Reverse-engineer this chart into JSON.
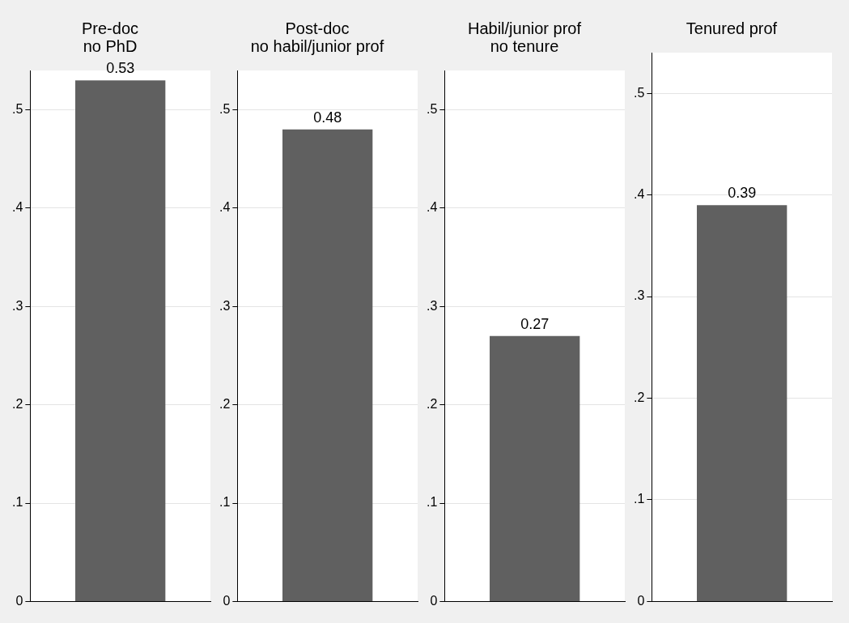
{
  "chart_data": [
    {
      "type": "bar",
      "title": "Pre-doc\nno PhD",
      "categories": [
        null
      ],
      "values": [
        0.53
      ],
      "color": "#606060",
      "data_labels": true,
      "ylim": [
        0,
        0.54
      ],
      "yticks": [
        {
          "value": 0,
          "label": "0"
        },
        {
          "value": 0.1,
          "label": ".1"
        },
        {
          "value": 0.2,
          "label": ".2"
        },
        {
          "value": 0.3,
          "label": ".3"
        },
        {
          "value": 0.4,
          "label": ".4"
        },
        {
          "value": 0.5,
          "label": ".5"
        }
      ],
      "grid": "y",
      "tick_labels": "y",
      "legend": false
    },
    {
      "type": "bar",
      "title": "Post-doc\nno habil/junior prof",
      "categories": [
        null
      ],
      "values": [
        0.48
      ],
      "color": "#606060",
      "data_labels": true,
      "ylim": [
        0,
        0.54
      ],
      "yticks": [
        {
          "value": 0,
          "label": "0"
        },
        {
          "value": 0.1,
          "label": ".1"
        },
        {
          "value": 0.2,
          "label": ".2"
        },
        {
          "value": 0.3,
          "label": ".3"
        },
        {
          "value": 0.4,
          "label": ".4"
        },
        {
          "value": 0.5,
          "label": ".5"
        }
      ],
      "grid": "y",
      "tick_labels": "y",
      "legend": false
    },
    {
      "type": "bar",
      "title": "Habil/junior prof\nno tenure",
      "categories": [
        null
      ],
      "values": [
        0.27
      ],
      "color": "#606060",
      "data_labels": true,
      "ylim": [
        0,
        0.54
      ],
      "yticks": [
        {
          "value": 0,
          "label": "0"
        },
        {
          "value": 0.1,
          "label": ".1"
        },
        {
          "value": 0.2,
          "label": ".2"
        },
        {
          "value": 0.3,
          "label": ".3"
        },
        {
          "value": 0.4,
          "label": ".4"
        },
        {
          "value": 0.5,
          "label": ".5"
        }
      ],
      "grid": "y",
      "tick_labels": "y",
      "legend": false
    },
    {
      "type": "bar",
      "title": "Tenured prof",
      "categories": [
        null
      ],
      "values": [
        0.39
      ],
      "color": "#606060",
      "data_labels": true,
      "ylim": [
        0,
        0.54
      ],
      "yticks": [
        {
          "value": 0,
          "label": "0"
        },
        {
          "value": 0.1,
          "label": ".1"
        },
        {
          "value": 0.2,
          "label": ".2"
        },
        {
          "value": 0.3,
          "label": ".3"
        },
        {
          "value": 0.4,
          "label": ".4"
        },
        {
          "value": 0.5,
          "label": ".5"
        }
      ],
      "grid": "y",
      "tick_labels": "y",
      "legend": false
    }
  ]
}
